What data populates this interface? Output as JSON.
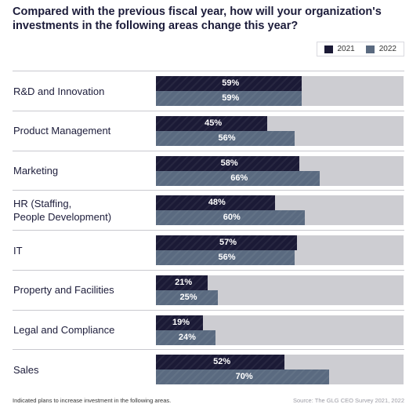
{
  "title": "Compared with the previous fiscal year, how will your organization's investments in the following areas change this year?",
  "footnote": "Indicated plans to increase investment in the following areas.",
  "source": "Source: The GLG CEO Survey 2021, 2022",
  "chart_data": {
    "type": "bar",
    "orientation": "horizontal",
    "title": "Compared with the previous fiscal year, how will your organization's investments in the following areas change this year?",
    "categories": [
      [
        "R&D and Innovation"
      ],
      [
        "Product Management"
      ],
      [
        "Marketing"
      ],
      [
        "HR (Staffing,",
        "People Development)"
      ],
      [
        "IT"
      ],
      [
        "Property and Facilities"
      ],
      [
        "Legal and Compliance"
      ],
      [
        "Sales"
      ]
    ],
    "series": [
      {
        "name": "2021",
        "color": "#1b1a36",
        "values": [
          59,
          45,
          58,
          48,
          57,
          21,
          19,
          52
        ]
      },
      {
        "name": "2022",
        "color": "#5a6a80",
        "values": [
          59,
          56,
          66,
          60,
          56,
          25,
          24,
          70
        ]
      }
    ],
    "xlim": [
      0,
      100
    ],
    "value_suffix": "%",
    "track_color": "#cdcdd2",
    "legend_position": "top-right",
    "grid": false
  }
}
